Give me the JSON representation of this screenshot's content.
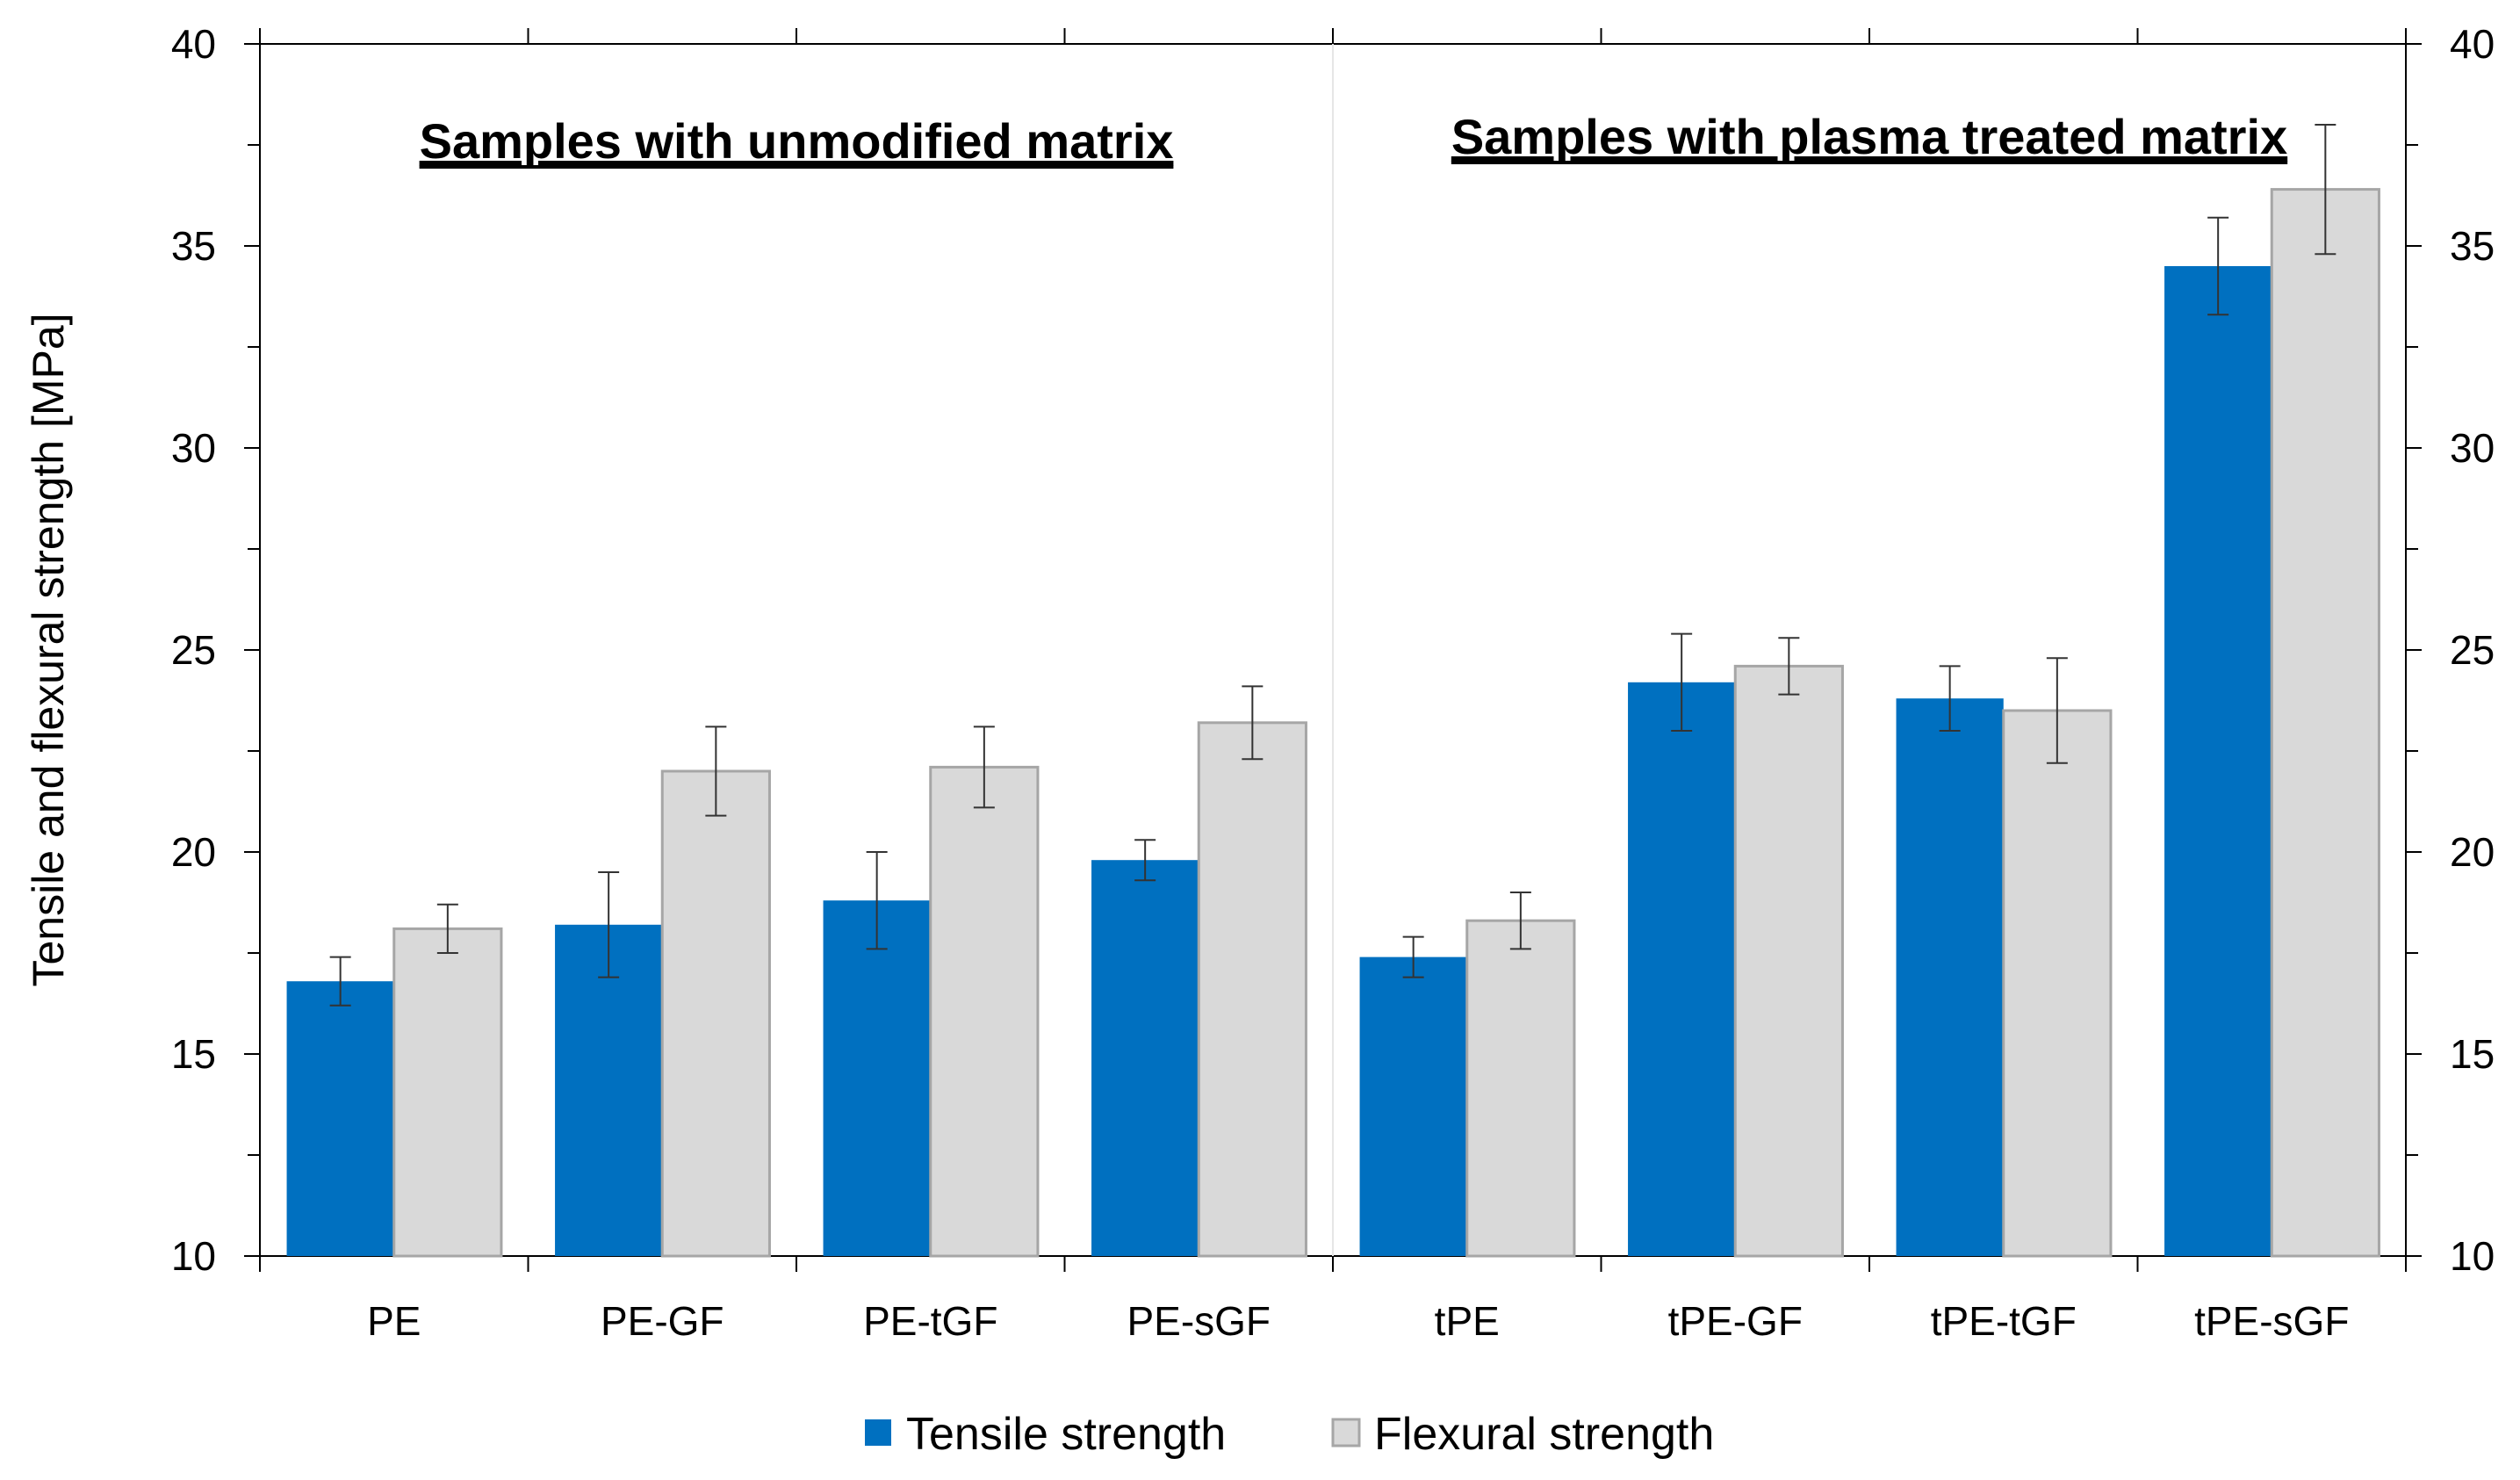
{
  "chart_data": {
    "type": "bar",
    "title": "",
    "xlabel": "",
    "ylabel": "Tensile and flexural strength  [MPa]",
    "ylim": [
      10,
      40
    ],
    "yticks": [
      "10",
      "15",
      "20",
      "25",
      "30",
      "35",
      "40"
    ],
    "grid": false,
    "legend_position": "bottom",
    "categories": [
      "PE",
      "PE-GF",
      "PE-tGF",
      "PE-sGF",
      "tPE",
      "tPE-GF",
      "tPE-tGF",
      "tPE-sGF"
    ],
    "series": [
      {
        "name": "Tensile strength",
        "color": "#0070C0",
        "values": [
          16.8,
          18.2,
          18.8,
          19.8,
          17.4,
          24.2,
          23.8,
          34.5
        ],
        "error": [
          0.6,
          1.3,
          1.2,
          0.5,
          0.5,
          1.2,
          0.8,
          1.2
        ]
      },
      {
        "name": "Flexural strength",
        "color": "#D9D9D9",
        "values": [
          18.1,
          22.0,
          22.1,
          23.2,
          18.3,
          24.6,
          23.5,
          36.4
        ],
        "error": [
          0.6,
          1.1,
          1.0,
          0.9,
          0.7,
          0.7,
          1.3,
          1.6
        ]
      }
    ],
    "annotations": [
      {
        "text": "Samples with unmodified matrix",
        "category_span": [
          "PE",
          "PE-sGF"
        ]
      },
      {
        "text": "Samples with plasma treated matrix",
        "category_span": [
          "tPE",
          "tPE-sGF"
        ]
      }
    ]
  }
}
